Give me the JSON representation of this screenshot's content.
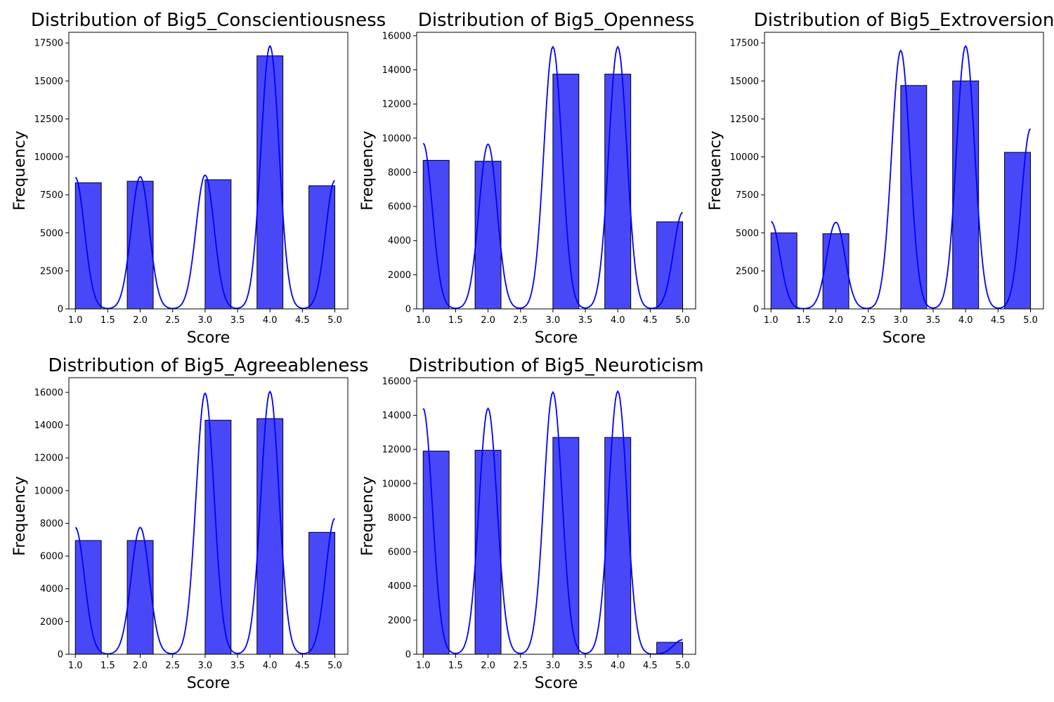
{
  "colors": {
    "bar_fill": "#4848f8",
    "bar_edge": "#000000",
    "kde_line": "#0000ff",
    "axes": "#000000",
    "background": "#ffffff"
  },
  "chart_data": [
    {
      "type": "bar",
      "title": "Distribution of Big5_Conscientiousness",
      "xlabel": "Score",
      "ylabel": "Frequency",
      "bin_edges": [
        1.0,
        1.4,
        1.8,
        2.2,
        2.6,
        3.0,
        3.4,
        3.8,
        4.2,
        4.6,
        5.0
      ],
      "values": [
        8300,
        0,
        8400,
        0,
        0,
        8500,
        0,
        16650,
        0,
        8100
      ],
      "kde_overlay": true,
      "kde_peaks": [
        8650,
        8700,
        8800,
        17300,
        8450
      ],
      "xlim": [
        0.9,
        5.2
      ],
      "ylim": [
        0,
        18200
      ],
      "xticks": [
        "1.0",
        "1.5",
        "2.0",
        "2.5",
        "3.0",
        "3.5",
        "4.0",
        "4.5",
        "5.0"
      ],
      "yticks": [
        "0",
        "2500",
        "5000",
        "7500",
        "10000",
        "12500",
        "15000",
        "17500"
      ],
      "ytick_values": [
        0,
        2500,
        5000,
        7500,
        10000,
        12500,
        15000,
        17500
      ],
      "grid": false,
      "legend": false
    },
    {
      "type": "bar",
      "title": "Distribution of Big5_Openness",
      "xlabel": "Score",
      "ylabel": "Frequency",
      "bin_edges": [
        1.0,
        1.4,
        1.8,
        2.2,
        2.6,
        3.0,
        3.4,
        3.8,
        4.2,
        4.6,
        5.0
      ],
      "values": [
        8700,
        0,
        8650,
        0,
        0,
        13750,
        0,
        13750,
        0,
        5100
      ],
      "kde_overlay": true,
      "kde_peaks": [
        9700,
        9650,
        15350,
        15350,
        5650
      ],
      "xlim": [
        0.9,
        5.2
      ],
      "ylim": [
        0,
        16200
      ],
      "xticks": [
        "1.0",
        "1.5",
        "2.0",
        "2.5",
        "3.0",
        "3.5",
        "4.0",
        "4.5",
        "5.0"
      ],
      "yticks": [
        "0",
        "2000",
        "4000",
        "6000",
        "8000",
        "10000",
        "12000",
        "14000",
        "16000"
      ],
      "ytick_values": [
        0,
        2000,
        4000,
        6000,
        8000,
        10000,
        12000,
        14000,
        16000
      ],
      "grid": false,
      "legend": false
    },
    {
      "type": "bar",
      "title": "Distribution of Big5_Extroversion",
      "xlabel": "Score",
      "ylabel": "Frequency",
      "bin_edges": [
        1.0,
        1.4,
        1.8,
        2.2,
        2.6,
        3.0,
        3.4,
        3.8,
        4.2,
        4.6,
        5.0
      ],
      "values": [
        5000,
        0,
        4950,
        0,
        0,
        14700,
        0,
        15000,
        0,
        10300
      ],
      "kde_overlay": true,
      "kde_peaks": [
        5750,
        5700,
        17000,
        17300,
        11850
      ],
      "xlim": [
        0.9,
        5.2
      ],
      "ylim": [
        0,
        18200
      ],
      "xticks": [
        "1.0",
        "1.5",
        "2.0",
        "2.5",
        "3.0",
        "3.5",
        "4.0",
        "4.5",
        "5.0"
      ],
      "yticks": [
        "0",
        "2500",
        "5000",
        "7500",
        "10000",
        "12500",
        "15000",
        "17500"
      ],
      "ytick_values": [
        0,
        2500,
        5000,
        7500,
        10000,
        12500,
        15000,
        17500
      ],
      "grid": false,
      "legend": false
    },
    {
      "type": "bar",
      "title": "Distribution of Big5_Agreeableness",
      "xlabel": "Score",
      "ylabel": "Frequency",
      "bin_edges": [
        1.0,
        1.4,
        1.8,
        2.2,
        2.6,
        3.0,
        3.4,
        3.8,
        4.2,
        4.6,
        5.0
      ],
      "values": [
        6950,
        0,
        6950,
        0,
        0,
        14300,
        0,
        14400,
        0,
        7450
      ],
      "kde_overlay": true,
      "kde_peaks": [
        7750,
        7750,
        15950,
        16050,
        8300
      ],
      "xlim": [
        0.9,
        5.2
      ],
      "ylim": [
        0,
        16900
      ],
      "xticks": [
        "1.0",
        "1.5",
        "2.0",
        "2.5",
        "3.0",
        "3.5",
        "4.0",
        "4.5",
        "5.0"
      ],
      "yticks": [
        "0",
        "2000",
        "4000",
        "6000",
        "8000",
        "10000",
        "12000",
        "14000",
        "16000"
      ],
      "ytick_values": [
        0,
        2000,
        4000,
        6000,
        8000,
        10000,
        12000,
        14000,
        16000
      ],
      "grid": false,
      "legend": false
    },
    {
      "type": "bar",
      "title": "Distribution of Big5_Neuroticism",
      "xlabel": "Score",
      "ylabel": "Frequency",
      "bin_edges": [
        1.0,
        1.4,
        1.8,
        2.2,
        2.6,
        3.0,
        3.4,
        3.8,
        4.2,
        4.6,
        5.0
      ],
      "values": [
        11900,
        0,
        11950,
        0,
        0,
        12700,
        0,
        12700,
        0,
        700
      ],
      "kde_overlay": true,
      "kde_peaks": [
        14400,
        14400,
        15350,
        15400,
        850
      ],
      "xlim": [
        0.9,
        5.2
      ],
      "ylim": [
        0,
        16200
      ],
      "xticks": [
        "1.0",
        "1.5",
        "2.0",
        "2.5",
        "3.0",
        "3.5",
        "4.0",
        "4.5",
        "5.0"
      ],
      "yticks": [
        "0",
        "2000",
        "4000",
        "6000",
        "8000",
        "10000",
        "12000",
        "14000",
        "16000"
      ],
      "ytick_values": [
        0,
        2000,
        4000,
        6000,
        8000,
        10000,
        12000,
        14000,
        16000
      ],
      "grid": false,
      "legend": false
    }
  ]
}
